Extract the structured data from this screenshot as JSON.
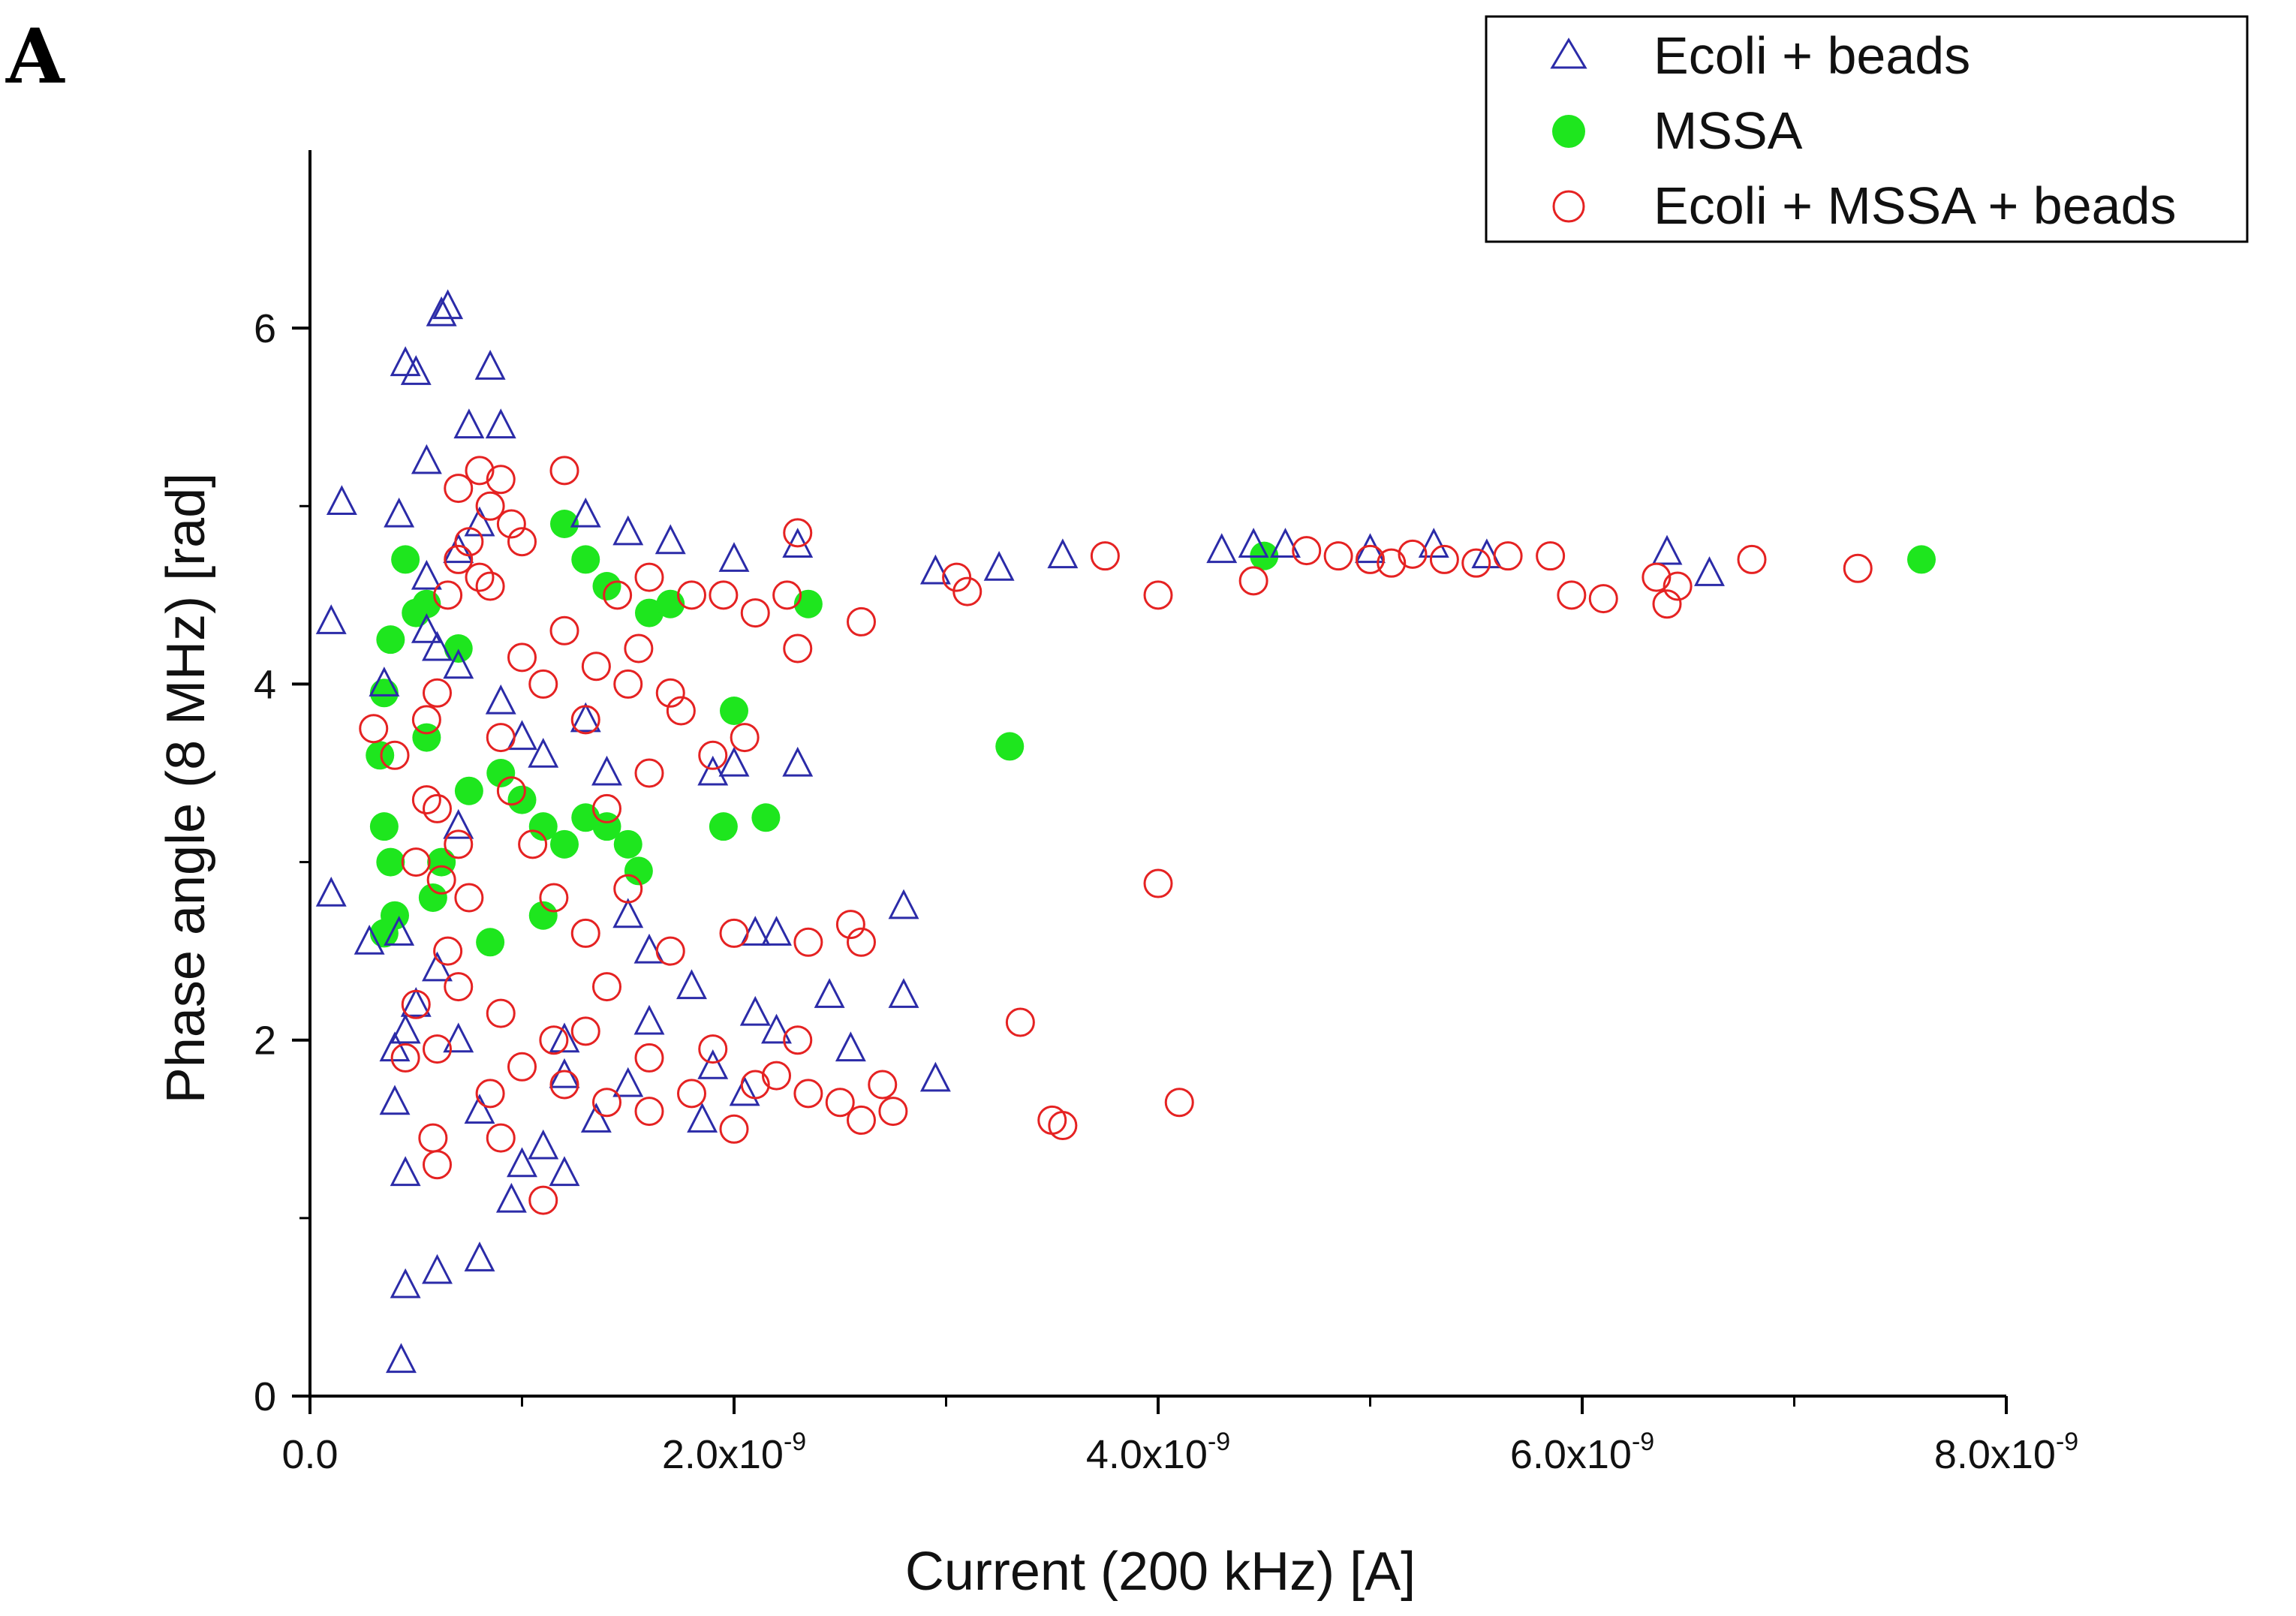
{
  "panel_label": "A",
  "colors": {
    "ecoli": "#2b2ba8",
    "mssa": "#1ee61e",
    "mix": "#e52222",
    "axis": "#000000"
  },
  "chart_data": {
    "type": "scatter",
    "title": "",
    "xlabel": "Current (200 kHz) [A]",
    "ylabel": "Phase angle (8 MHz) [rad]",
    "xlim": [
      0,
      8e-09
    ],
    "ylim": [
      0,
      7
    ],
    "x_ticks": [
      {
        "value": 0,
        "label": "0.0",
        "exp": ""
      },
      {
        "value": 2e-09,
        "label": "2.0x10",
        "exp": "-9"
      },
      {
        "value": 4e-09,
        "label": "4.0x10",
        "exp": "-9"
      },
      {
        "value": 6e-09,
        "label": "6.0x10",
        "exp": "-9"
      },
      {
        "value": 8e-09,
        "label": "8.0x10",
        "exp": "-9"
      }
    ],
    "y_ticks": [
      {
        "value": 0,
        "label": "0"
      },
      {
        "value": 2,
        "label": "2"
      },
      {
        "value": 4,
        "label": "4"
      },
      {
        "value": 6,
        "label": "6"
      }
    ],
    "legend_position": "top-right",
    "series": [
      {
        "name": "Ecoli + beads",
        "marker": "triangle-open",
        "color": "#2b2ba8",
        "points": [
          [
            1.5e-10,
            5.02
          ],
          [
            1e-10,
            4.35
          ],
          [
            1e-10,
            2.82
          ],
          [
            2.8e-10,
            2.55
          ],
          [
            4.5e-10,
            5.8
          ],
          [
            5e-10,
            5.75
          ],
          [
            6.2e-10,
            6.08
          ],
          [
            6.5e-10,
            6.12
          ],
          [
            8.5e-10,
            5.78
          ],
          [
            7.5e-10,
            5.45
          ],
          [
            9e-10,
            5.45
          ],
          [
            5.5e-10,
            5.25
          ],
          [
            4.2e-10,
            4.95
          ],
          [
            4.5e-10,
            0.62
          ],
          [
            4.3e-10,
            0.2
          ],
          [
            6e-10,
            0.7
          ],
          [
            8e-10,
            0.77
          ],
          [
            4.5e-10,
            1.25
          ],
          [
            9.5e-10,
            1.1
          ],
          [
            1e-09,
            1.3
          ],
          [
            1.1e-09,
            1.4
          ],
          [
            4e-10,
            1.65
          ],
          [
            4e-10,
            1.95
          ],
          [
            4.5e-10,
            2.05
          ],
          [
            5e-10,
            2.2
          ],
          [
            7e-10,
            2.0
          ],
          [
            8e-10,
            1.6
          ],
          [
            1e-09,
            3.7
          ],
          [
            1.1e-09,
            3.6
          ],
          [
            1.3e-09,
            3.8
          ],
          [
            1.4e-09,
            3.5
          ],
          [
            1.5e-09,
            2.7
          ],
          [
            1.6e-09,
            2.5
          ],
          [
            1.8e-09,
            2.3
          ],
          [
            1.9e-09,
            3.5
          ],
          [
            2e-09,
            3.55
          ],
          [
            2.1e-09,
            2.6
          ],
          [
            2.2e-09,
            2.6
          ],
          [
            2.1e-09,
            2.15
          ],
          [
            2.2e-09,
            2.05
          ],
          [
            2.3e-09,
            3.55
          ],
          [
            2.45e-09,
            2.25
          ],
          [
            2.55e-09,
            1.95
          ],
          [
            2.8e-09,
            2.75
          ],
          [
            2.8e-09,
            2.25
          ],
          [
            2.95e-09,
            1.78
          ],
          [
            2.3e-09,
            4.78
          ],
          [
            1.3e-09,
            4.95
          ],
          [
            1.5e-09,
            4.85
          ],
          [
            1.7e-09,
            4.8
          ],
          [
            2e-09,
            4.7
          ],
          [
            2.95e-09,
            4.63
          ],
          [
            3.25e-09,
            4.65
          ],
          [
            3.55e-09,
            4.72
          ],
          [
            4.3e-09,
            4.75
          ],
          [
            4.45e-09,
            4.78
          ],
          [
            4.6e-09,
            4.78
          ],
          [
            5e-09,
            4.75
          ],
          [
            5.3e-09,
            4.78
          ],
          [
            5.55e-09,
            4.72
          ],
          [
            6.4e-09,
            4.74
          ],
          [
            6.6e-09,
            4.62
          ],
          [
            7e-10,
            4.1
          ],
          [
            9e-10,
            3.9
          ],
          [
            1.2e-09,
            1.25
          ],
          [
            1.35e-09,
            1.55
          ],
          [
            1.85e-09,
            1.55
          ],
          [
            1.5e-09,
            1.75
          ],
          [
            1.2e-09,
            2.0
          ],
          [
            6e-10,
            2.4
          ],
          [
            5.5e-10,
            4.6
          ],
          [
            7e-10,
            4.75
          ],
          [
            8e-10,
            4.9
          ],
          [
            5.5e-10,
            4.3
          ],
          [
            6e-10,
            4.2
          ],
          [
            1.2e-09,
            1.8
          ],
          [
            1.6e-09,
            2.1
          ],
          [
            1.9e-09,
            1.85
          ],
          [
            2.05e-09,
            1.7
          ],
          [
            3.5e-10,
            4.0
          ],
          [
            4.2e-10,
            2.6
          ],
          [
            7e-10,
            3.2
          ]
        ]
      },
      {
        "name": "MSSA",
        "marker": "circle-filled",
        "color": "#1ee61e",
        "points": [
          [
            3.8e-10,
            4.25
          ],
          [
            4.5e-10,
            4.7
          ],
          [
            5.5e-10,
            4.45
          ],
          [
            7e-10,
            4.2
          ],
          [
            3.5e-10,
            3.95
          ],
          [
            3.3e-10,
            3.6
          ],
          [
            3.5e-10,
            3.2
          ],
          [
            3.8e-10,
            3.0
          ],
          [
            4e-10,
            2.7
          ],
          [
            3.5e-10,
            2.6
          ],
          [
            5.5e-10,
            3.7
          ],
          [
            7.5e-10,
            3.4
          ],
          [
            9e-10,
            3.5
          ],
          [
            1e-09,
            3.35
          ],
          [
            1.1e-09,
            3.2
          ],
          [
            1.2e-09,
            3.1
          ],
          [
            1.3e-09,
            3.25
          ],
          [
            1.4e-09,
            3.2
          ],
          [
            1.5e-09,
            3.1
          ],
          [
            1.55e-09,
            2.95
          ],
          [
            1.2e-09,
            4.9
          ],
          [
            1.3e-09,
            4.7
          ],
          [
            1.6e-09,
            4.4
          ],
          [
            1.7e-09,
            4.45
          ],
          [
            2.35e-09,
            4.45
          ],
          [
            2e-09,
            3.85
          ],
          [
            2.15e-09,
            3.25
          ],
          [
            1.95e-09,
            3.2
          ],
          [
            3.3e-09,
            3.65
          ],
          [
            7.6e-09,
            4.7
          ],
          [
            4.5e-09,
            4.72
          ],
          [
            1.1e-09,
            2.7
          ],
          [
            8.5e-10,
            2.55
          ],
          [
            1.4e-09,
            4.55
          ],
          [
            5e-10,
            4.4
          ],
          [
            6.2e-10,
            3.0
          ],
          [
            5.8e-10,
            2.8
          ]
        ]
      },
      {
        "name": "Ecoli + MSSA + beads",
        "marker": "circle-open",
        "color": "#e52222",
        "points": [
          [
            3e-10,
            3.75
          ],
          [
            4e-10,
            3.6
          ],
          [
            5.5e-10,
            3.35
          ],
          [
            5e-10,
            3.0
          ],
          [
            6.2e-10,
            2.9
          ],
          [
            7e-10,
            3.1
          ],
          [
            7.5e-10,
            2.8
          ],
          [
            6e-10,
            3.3
          ],
          [
            6.5e-10,
            2.5
          ],
          [
            7e-10,
            2.3
          ],
          [
            5e-10,
            2.2
          ],
          [
            4.5e-10,
            1.9
          ],
          [
            5.8e-10,
            1.45
          ],
          [
            6e-10,
            1.3
          ],
          [
            8.5e-10,
            1.7
          ],
          [
            9e-10,
            1.45
          ],
          [
            1e-09,
            1.85
          ],
          [
            1.1e-09,
            1.1
          ],
          [
            1.15e-09,
            2.0
          ],
          [
            1.2e-09,
            1.75
          ],
          [
            1.4e-09,
            1.65
          ],
          [
            1.6e-09,
            1.6
          ],
          [
            1.8e-09,
            1.7
          ],
          [
            2e-09,
            1.5
          ],
          [
            2.1e-09,
            1.75
          ],
          [
            2.2e-09,
            1.8
          ],
          [
            2.35e-09,
            1.7
          ],
          [
            2.5e-09,
            1.65
          ],
          [
            2.6e-09,
            1.55
          ],
          [
            2.7e-09,
            1.75
          ],
          [
            2.75e-09,
            1.6
          ],
          [
            3.5e-09,
            1.55
          ],
          [
            3.55e-09,
            1.52
          ],
          [
            4.1e-09,
            1.65
          ],
          [
            3.35e-09,
            2.1
          ],
          [
            2.55e-09,
            2.65
          ],
          [
            2.6e-09,
            2.55
          ],
          [
            2.35e-09,
            2.55
          ],
          [
            2e-09,
            2.6
          ],
          [
            4e-09,
            2.88
          ],
          [
            1.7e-09,
            2.5
          ],
          [
            1.5e-09,
            2.85
          ],
          [
            1.4e-09,
            3.3
          ],
          [
            1.6e-09,
            3.5
          ],
          [
            1.75e-09,
            3.85
          ],
          [
            1.7e-09,
            3.95
          ],
          [
            1.9e-09,
            3.6
          ],
          [
            2.05e-09,
            3.7
          ],
          [
            1.3e-09,
            3.8
          ],
          [
            1.1e-09,
            4.0
          ],
          [
            1e-09,
            4.15
          ],
          [
            1.2e-09,
            4.3
          ],
          [
            1.35e-09,
            4.1
          ],
          [
            1.5e-09,
            4.0
          ],
          [
            1.55e-09,
            4.2
          ],
          [
            1.45e-09,
            4.5
          ],
          [
            1.6e-09,
            4.6
          ],
          [
            1.8e-09,
            4.5
          ],
          [
            1.95e-09,
            4.5
          ],
          [
            2.1e-09,
            4.4
          ],
          [
            2.25e-09,
            4.5
          ],
          [
            2.3e-09,
            4.2
          ],
          [
            2.6e-09,
            4.35
          ],
          [
            2.3e-09,
            4.85
          ],
          [
            3.05e-09,
            4.6
          ],
          [
            3.1e-09,
            4.52
          ],
          [
            3.75e-09,
            4.72
          ],
          [
            4e-09,
            4.5
          ],
          [
            4.45e-09,
            4.58
          ],
          [
            4.7e-09,
            4.75
          ],
          [
            4.85e-09,
            4.72
          ],
          [
            5e-09,
            4.7
          ],
          [
            5.1e-09,
            4.68
          ],
          [
            5.2e-09,
            4.73
          ],
          [
            5.35e-09,
            4.7
          ],
          [
            5.5e-09,
            4.68
          ],
          [
            5.65e-09,
            4.72
          ],
          [
            5.85e-09,
            4.72
          ],
          [
            5.95e-09,
            4.5
          ],
          [
            6.1e-09,
            4.48
          ],
          [
            6.35e-09,
            4.6
          ],
          [
            6.4e-09,
            4.45
          ],
          [
            6.45e-09,
            4.55
          ],
          [
            6.8e-09,
            4.7
          ],
          [
            7.3e-09,
            4.65
          ],
          [
            7e-10,
            4.7
          ],
          [
            7.5e-10,
            4.8
          ],
          [
            8e-10,
            4.6
          ],
          [
            8.5e-10,
            5.0
          ],
          [
            9e-10,
            5.15
          ],
          [
            9.5e-10,
            4.9
          ],
          [
            6.5e-10,
            4.5
          ],
          [
            7e-10,
            5.1
          ],
          [
            8e-10,
            5.2
          ],
          [
            8.5e-10,
            4.55
          ],
          [
            1e-09,
            4.8
          ],
          [
            1.2e-09,
            5.2
          ],
          [
            6e-10,
            3.95
          ],
          [
            5.5e-10,
            3.8
          ],
          [
            9e-10,
            3.7
          ],
          [
            9.5e-10,
            3.4
          ],
          [
            1.05e-09,
            3.1
          ],
          [
            1.15e-09,
            2.8
          ],
          [
            1.3e-09,
            2.6
          ],
          [
            1.4e-09,
            2.3
          ],
          [
            6e-10,
            1.95
          ],
          [
            9e-10,
            2.15
          ],
          [
            1.3e-09,
            2.05
          ],
          [
            1.6e-09,
            1.9
          ],
          [
            1.9e-09,
            1.95
          ],
          [
            2.3e-09,
            2.0
          ]
        ]
      }
    ]
  }
}
